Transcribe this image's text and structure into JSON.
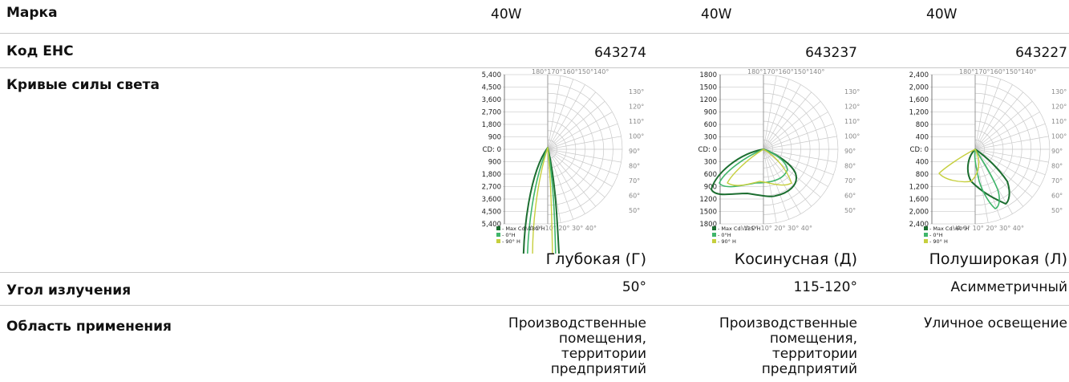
{
  "rows": {
    "marka": {
      "label": "Марка",
      "values": [
        "40W",
        "40W",
        "40W"
      ]
    },
    "code": {
      "label": "Код ЕНС",
      "values": [
        "643274",
        "643237",
        "643227"
      ]
    },
    "curves": {
      "label": "Кривые силы света",
      "captions": [
        "Глубокая (Г)",
        "Косинусная (Д)",
        "Полуширокая (Л)"
      ]
    },
    "angle": {
      "label": "Угол излучения",
      "values": [
        "50°",
        "115-120°",
        "Асимметричный"
      ]
    },
    "area": {
      "label": "Область применения",
      "values": [
        [
          "Производственные",
          "помещения,",
          "территории",
          "предприятий"
        ],
        [
          "Производственные",
          "помещения,",
          "территории",
          "предприятий"
        ],
        [
          "Уличное освещение"
        ]
      ]
    }
  },
  "charts": [
    {
      "y_ticks": [
        "5,400",
        "4,500",
        "3,600",
        "2,700",
        "1,800",
        "900",
        "CD: 0",
        "900",
        "1,800",
        "2,700",
        "3,600",
        "4,500",
        "5,400"
      ],
      "top_angles": "180°170°160°150°140°",
      "right_angles": [
        "130°",
        "120°",
        "110°",
        "100°",
        "90°",
        "80°",
        "70°",
        "60°",
        "50°"
      ],
      "bottom_angles": "VA 0°  10° 20° 30°  40°",
      "legend": [
        "- Max Cd: 130°H",
        "- 0°H",
        "- 90° H"
      ]
    },
    {
      "y_ticks": [
        "1800",
        "1500",
        "1200",
        "900",
        "600",
        "300",
        "CD: 0",
        "300",
        "600",
        "900",
        "1200",
        "1500",
        "1800"
      ],
      "top_angles": "180°170°160°150°140°",
      "right_angles": [
        "130°",
        "120°",
        "110°",
        "100°",
        "90°",
        "80°",
        "70°",
        "60°",
        "50°"
      ],
      "bottom_angles": "VA 0°  10° 20° 30°  40°",
      "legend": [
        "- Max Cd: 135°H",
        "- 0°H",
        "- 90° H"
      ]
    },
    {
      "y_ticks": [
        "2,400",
        "2,000",
        "1,600",
        "1,200",
        "800",
        "400",
        "CD: 0",
        "400",
        "800",
        "1,200",
        "1,600",
        "2,000",
        "2,400"
      ],
      "top_angles": "180°170°160°150°140°",
      "right_angles": [
        "130°",
        "120°",
        "110°",
        "100°",
        "90°",
        "80°",
        "70°",
        "60°",
        "50°"
      ],
      "bottom_angles": "VA 0°  10° 20° 30°  40°",
      "legend": [
        "- Max Cd: 60°H",
        "- 0°H",
        "- 90° H"
      ]
    }
  ],
  "colors": {
    "dark_green": "#1c6e30",
    "mid_green": "#3fb56a",
    "lime": "#c6cf3e"
  }
}
